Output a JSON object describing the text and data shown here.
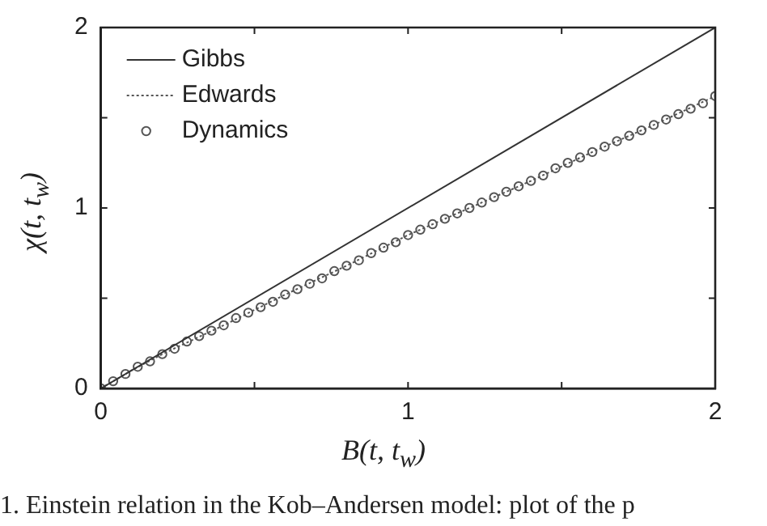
{
  "chart_data": {
    "type": "line",
    "xlabel": "B(t, t$_{w}$)",
    "ylabel": "χ(t, t$_{w}$)",
    "xlim": [
      0,
      2
    ],
    "ylim": [
      0,
      2
    ],
    "xticks": [
      0,
      {
        "value": 0.5,
        "label": null
      },
      1,
      {
        "value": 1.5,
        "label": null
      },
      2
    ],
    "yticks": [
      0,
      {
        "value": 0.5,
        "label": null
      },
      1,
      {
        "value": 1.5,
        "label": null
      },
      2
    ],
    "grid": false,
    "legend": "top left",
    "annotations": [
      "1. Einstein relation in the Kob–Andersen model: plot of the p"
    ],
    "series": [
      {
        "name": "Gibbs",
        "color": "#333333",
        "line_style": "solid",
        "marker": "none",
        "x": [
          0,
          2
        ],
        "values": [
          0,
          2
        ]
      },
      {
        "name": "Edwards",
        "color": "#555555",
        "line_style": "dotted",
        "marker": "none",
        "x": [
          0,
          0.1,
          0.2,
          0.3,
          0.4,
          0.6,
          0.8,
          1.0,
          1.2,
          1.4,
          1.6,
          1.8,
          2.0
        ],
        "values": [
          0,
          0.1,
          0.19,
          0.27,
          0.35,
          0.52,
          0.68,
          0.85,
          1.0,
          1.15,
          1.31,
          1.46,
          1.62
        ]
      },
      {
        "name": "Dynamics",
        "color": "#555555",
        "type": "scatter",
        "marker": "circle",
        "x": [
          0,
          0.04,
          0.08,
          0.12,
          0.16,
          0.2,
          0.24,
          0.28,
          0.32,
          0.36,
          0.4,
          0.44,
          0.48,
          0.52,
          0.56,
          0.6,
          0.64,
          0.68,
          0.72,
          0.76,
          0.8,
          0.84,
          0.88,
          0.92,
          0.96,
          1.0,
          1.04,
          1.08,
          1.12,
          1.16,
          1.2,
          1.24,
          1.28,
          1.32,
          1.36,
          1.4,
          1.44,
          1.48,
          1.52,
          1.56,
          1.6,
          1.64,
          1.68,
          1.72,
          1.76,
          1.8,
          1.84,
          1.88,
          1.92,
          1.96,
          2.0
        ],
        "values": [
          0,
          0.04,
          0.08,
          0.12,
          0.15,
          0.19,
          0.22,
          0.26,
          0.29,
          0.32,
          0.35,
          0.39,
          0.42,
          0.45,
          0.48,
          0.52,
          0.55,
          0.58,
          0.61,
          0.65,
          0.68,
          0.71,
          0.75,
          0.78,
          0.81,
          0.85,
          0.88,
          0.91,
          0.94,
          0.97,
          1.0,
          1.03,
          1.06,
          1.09,
          1.12,
          1.15,
          1.18,
          1.22,
          1.25,
          1.28,
          1.31,
          1.34,
          1.37,
          1.4,
          1.43,
          1.46,
          1.49,
          1.52,
          1.55,
          1.58,
          1.62
        ]
      }
    ]
  }
}
